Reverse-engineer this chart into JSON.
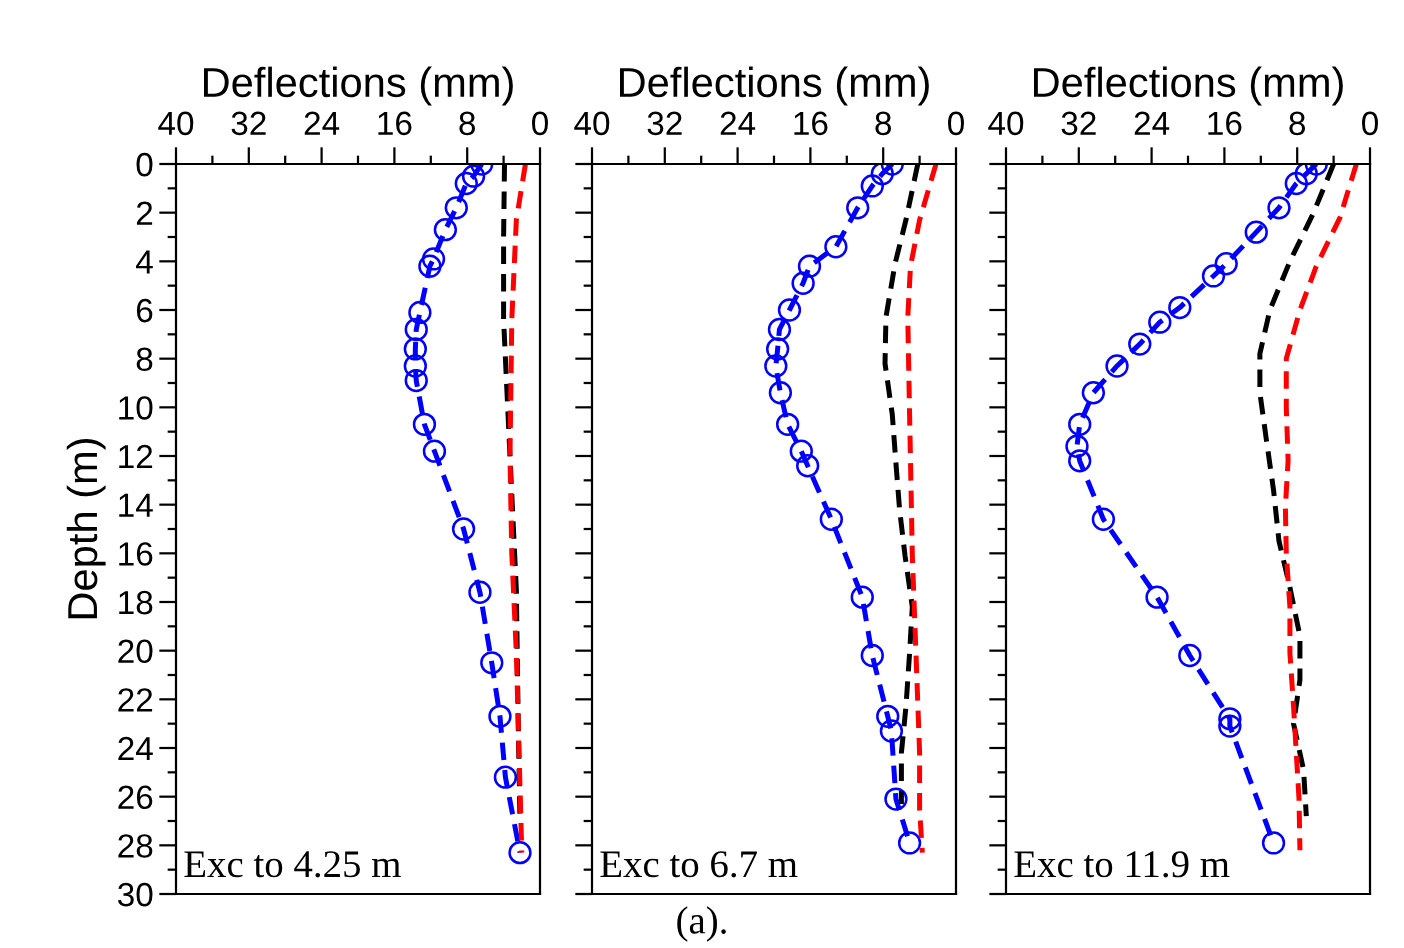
{
  "chart_data": [
    {
      "type": "line",
      "xlabel": "Deflections (mm)",
      "ylabel": "Depth (m)",
      "xlim": [
        40,
        0
      ],
      "ylim": [
        30,
        0
      ],
      "xticks": [
        40,
        {
          "value": 36,
          "label": null
        },
        32,
        {
          "value": 28,
          "label": null
        },
        24,
        {
          "value": 20,
          "label": null
        },
        16,
        {
          "value": 12,
          "label": null
        },
        8,
        {
          "value": 4,
          "label": null
        },
        0
      ],
      "yticks": [
        0,
        {
          "value": 1,
          "label": null
        },
        2,
        {
          "value": 3,
          "label": null
        },
        4,
        {
          "value": 5,
          "label": null
        },
        6,
        {
          "value": 7,
          "label": null
        },
        8,
        {
          "value": 9,
          "label": null
        },
        10,
        {
          "value": 11,
          "label": null
        },
        12,
        {
          "value": 13,
          "label": null
        },
        14,
        {
          "value": 15,
          "label": null
        },
        16,
        {
          "value": 17,
          "label": null
        },
        18,
        {
          "value": 19,
          "label": null
        },
        20,
        {
          "value": 21,
          "label": null
        },
        22,
        {
          "value": 23,
          "label": null
        },
        24,
        {
          "value": 25,
          "label": null
        },
        26,
        {
          "value": 27,
          "label": null
        },
        28,
        {
          "value": 29,
          "label": null
        },
        30
      ],
      "line_style": "dashed",
      "legend": false,
      "grid": false,
      "annotations": [
        "Exc to 4.25 m"
      ],
      "series": [
        {
          "color": "#0000ff",
          "marker": "circle",
          "x": [
            6.4,
            7.3,
            8.1,
            9.2,
            10.4,
            11.7,
            12.1,
            13.2,
            13.6,
            13.7,
            13.7,
            13.6,
            12.7,
            11.6,
            8.4,
            6.6,
            5.3,
            4.4,
            3.8,
            2.2
          ],
          "values": [
            0,
            0.5,
            0.8,
            1.8,
            2.7,
            3.9,
            4.2,
            6.1,
            6.8,
            7.6,
            8.3,
            8.9,
            10.7,
            11.8,
            15.0,
            17.6,
            20.5,
            22.7,
            25.2,
            28.3
          ]
        },
        {
          "color": "#000000",
          "x": [
            3.9,
            4.0,
            4.0,
            3.3,
            2.6,
            2.4,
            2.2
          ],
          "values": [
            0,
            3,
            6.4,
            12,
            17.5,
            22.8,
            27
          ]
        },
        {
          "color": "#ff0000",
          "x": [
            1.6,
            2.6,
            3.1,
            3.3,
            3.1,
            2.6,
            2.3,
            2.0
          ],
          "values": [
            0,
            2.3,
            6.4,
            12,
            16,
            20.1,
            24.2,
            28.3
          ]
        }
      ]
    },
    {
      "type": "line",
      "xlabel": "Deflections (mm)",
      "xlim": [
        40,
        0
      ],
      "ylim": [
        30,
        0
      ],
      "tick_labels": "x",
      "xticks": [
        40,
        {
          "value": 36,
          "label": null
        },
        32,
        {
          "value": 28,
          "label": null
        },
        24,
        {
          "value": 20,
          "label": null
        },
        16,
        {
          "value": 12,
          "label": null
        },
        8,
        {
          "value": 4,
          "label": null
        },
        0
      ],
      "yticks": [
        0,
        {
          "value": 1,
          "label": null
        },
        2,
        {
          "value": 3,
          "label": null
        },
        4,
        {
          "value": 5,
          "label": null
        },
        6,
        {
          "value": 7,
          "label": null
        },
        8,
        {
          "value": 9,
          "label": null
        },
        10,
        {
          "value": 11,
          "label": null
        },
        12,
        {
          "value": 13,
          "label": null
        },
        14,
        {
          "value": 15,
          "label": null
        },
        16,
        {
          "value": 17,
          "label": null
        },
        18,
        {
          "value": 19,
          "label": null
        },
        20,
        {
          "value": 21,
          "label": null
        },
        22,
        {
          "value": 23,
          "label": null
        },
        24,
        {
          "value": 25,
          "label": null
        },
        26,
        {
          "value": 27,
          "label": null
        },
        28,
        {
          "value": 29,
          "label": null
        },
        30
      ],
      "line_style": "dashed",
      "legend": false,
      "grid": false,
      "annotations": [
        "Exc to 6.7 m",
        "(a)."
      ],
      "series": [
        {
          "color": "#0000ff",
          "marker": "circle",
          "x": [
            7.0,
            8.1,
            9.2,
            10.8,
            13.2,
            16.1,
            16.8,
            18.3,
            19.4,
            19.6,
            19.8,
            19.3,
            18.5,
            17.0,
            16.3,
            13.7,
            10.3,
            9.2,
            7.5,
            7.1,
            6.6,
            5.1
          ],
          "values": [
            0,
            0.4,
            0.9,
            1.8,
            3.4,
            4.2,
            4.9,
            6.0,
            6.8,
            7.6,
            8.3,
            9.4,
            10.7,
            11.8,
            12.4,
            14.6,
            17.8,
            20.2,
            22.7,
            23.3,
            26.1,
            27.9
          ]
        },
        {
          "color": "#000000",
          "x": [
            4.2,
            5.5,
            6.7,
            7.7,
            7.8,
            7.0,
            6.6,
            6.2,
            5.6,
            4.8,
            5.1,
            5.5,
            6.0,
            6.0
          ],
          "values": [
            0,
            2.3,
            4.1,
            6.3,
            8.2,
            10.3,
            12.3,
            14.2,
            16.1,
            18.2,
            20.1,
            22.3,
            24.2,
            26.3
          ]
        },
        {
          "color": "#ff0000",
          "x": [
            2.2,
            4.0,
            5.0,
            5.3,
            5.1,
            5.0,
            4.8,
            4.4,
            4.0,
            4.0,
            3.7
          ],
          "values": [
            0,
            2.3,
            4.2,
            6.3,
            10.3,
            12.2,
            16.1,
            20.1,
            24.2,
            26.5,
            28.3
          ]
        }
      ]
    },
    {
      "type": "line",
      "xlabel": "Deflections (mm)",
      "xlim": [
        40,
        0
      ],
      "ylim": [
        30,
        0
      ],
      "tick_labels": "x",
      "xticks": [
        40,
        {
          "value": 36,
          "label": null
        },
        32,
        {
          "value": 28,
          "label": null
        },
        24,
        {
          "value": 20,
          "label": null
        },
        16,
        {
          "value": 12,
          "label": null
        },
        8,
        {
          "value": 4,
          "label": null
        },
        0
      ],
      "yticks": [
        0,
        {
          "value": 1,
          "label": null
        },
        2,
        {
          "value": 3,
          "label": null
        },
        4,
        {
          "value": 5,
          "label": null
        },
        6,
        {
          "value": 7,
          "label": null
        },
        8,
        {
          "value": 9,
          "label": null
        },
        10,
        {
          "value": 11,
          "label": null
        },
        12,
        {
          "value": 13,
          "label": null
        },
        14,
        {
          "value": 15,
          "label": null
        },
        16,
        {
          "value": 17,
          "label": null
        },
        18,
        {
          "value": 19,
          "label": null
        },
        20,
        {
          "value": 21,
          "label": null
        },
        22,
        {
          "value": 23,
          "label": null
        },
        24,
        {
          "value": 25,
          "label": null
        },
        26,
        {
          "value": 27,
          "label": null
        },
        28,
        {
          "value": 29,
          "label": null
        },
        30
      ],
      "line_style": "dashed",
      "legend": false,
      "grid": false,
      "annotations": [
        "Exc to 11.9 m"
      ],
      "series": [
        {
          "color": "#0000ff",
          "marker": "circle",
          "x": [
            5.9,
            7.0,
            8.1,
            10.0,
            12.5,
            15.8,
            17.2,
            20.9,
            23.1,
            25.3,
            27.8,
            30.4,
            31.9,
            32.2,
            31.9,
            29.3,
            23.4,
            19.8,
            15.4,
            15.4,
            10.6
          ],
          "values": [
            0,
            0.4,
            0.8,
            1.8,
            2.8,
            4.1,
            4.6,
            5.9,
            6.5,
            7.4,
            8.3,
            9.4,
            10.7,
            11.6,
            12.2,
            14.6,
            17.8,
            20.2,
            22.8,
            23.1,
            27.9
          ]
        },
        {
          "color": "#000000",
          "x": [
            4.0,
            6.2,
            8.8,
            11.0,
            12.1,
            12.1,
            11.4,
            10.6,
            10.0,
            8.8,
            7.7,
            7.7,
            8.4,
            7.3,
            7.0
          ],
          "values": [
            0,
            2.0,
            4.0,
            6.0,
            7.8,
            9.4,
            11.3,
            13.4,
            15.5,
            17.4,
            19.4,
            21.2,
            23.0,
            24.9,
            26.8
          ]
        },
        {
          "color": "#ff0000",
          "x": [
            1.5,
            3.3,
            5.9,
            7.7,
            9.2,
            9.2,
            9.0,
            9.3,
            9.2,
            8.8,
            8.8,
            8.4,
            8.1,
            7.8,
            7.7
          ],
          "values": [
            0,
            2.2,
            4.2,
            6.0,
            8.0,
            10.0,
            12.2,
            14.1,
            16.0,
            18.2,
            20.1,
            22.3,
            24.2,
            26.1,
            28.2
          ]
        }
      ]
    }
  ]
}
